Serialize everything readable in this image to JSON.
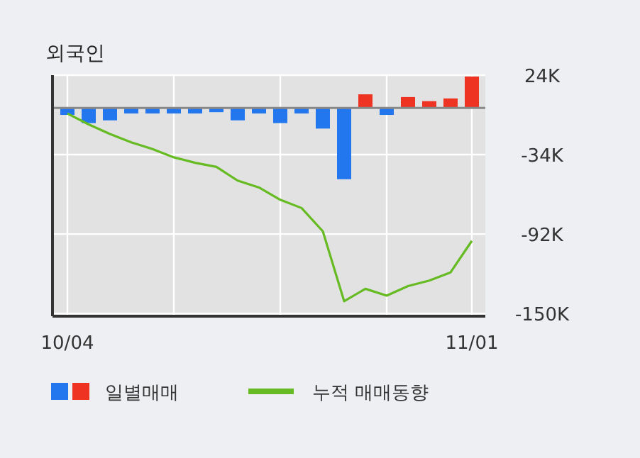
{
  "chart_data": {
    "type": "bar",
    "title": "외국인",
    "categories": [
      "10/04",
      null,
      null,
      null,
      null,
      null,
      null,
      null,
      null,
      null,
      null,
      null,
      null,
      null,
      null,
      null,
      null,
      null,
      null,
      "11/01"
    ],
    "series": [
      {
        "name": "일별매매",
        "colors": [
          "#2277ee",
          "#2277ee",
          "#2277ee",
          "#2277ee",
          "#2277ee",
          "#2277ee",
          "#2277ee",
          "#2277ee",
          "#2277ee",
          "#2277ee",
          "#2277ee",
          "#2277ee",
          "#2277ee",
          "#2277ee",
          "#ee3322",
          "#2277ee",
          "#ee3322",
          "#ee3322",
          "#ee3322",
          "#ee3322"
        ],
        "values": [
          -5,
          -11,
          -9,
          -4,
          -4,
          -4,
          -4,
          -3,
          -9,
          -4,
          -11,
          -4,
          -15,
          -52,
          10,
          -5,
          8,
          5,
          7,
          23
        ]
      },
      {
        "name": "누적 매매동향",
        "type": "line",
        "color": "#66bb22",
        "values": [
          -4,
          -12,
          -19,
          -25,
          -30,
          -36,
          -40,
          -43,
          -53,
          -58,
          -67,
          -73,
          -90,
          -141,
          -132,
          -137,
          -130,
          -126,
          -120,
          -97
        ]
      }
    ],
    "ylim": [
      -152,
      24
    ],
    "yticks": [
      {
        "value": 24,
        "label": "24K"
      },
      {
        "value": -34,
        "label": "-34K"
      },
      {
        "value": -92,
        "label": "-92K"
      },
      {
        "value": -150,
        "label": "-150K"
      }
    ],
    "grid": true,
    "legend": "bottom"
  }
}
